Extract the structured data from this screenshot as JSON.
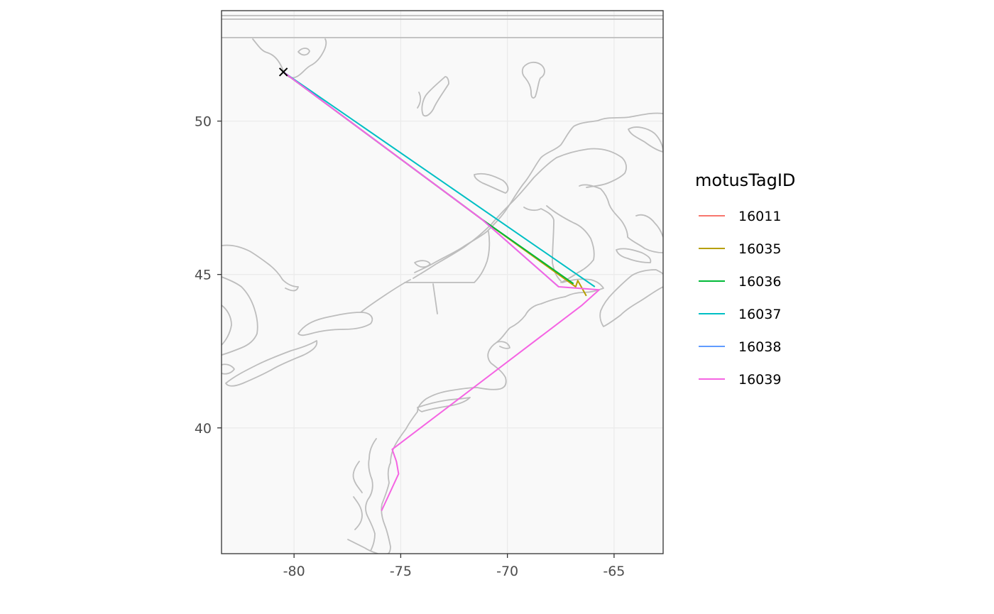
{
  "chart_data": {
    "type": "map",
    "xlim": [
      -83.4,
      -62.7
    ],
    "ylim": [
      35.9,
      53.6
    ],
    "x_ticks": [
      -80,
      -75,
      -70,
      -65
    ],
    "y_ticks": [
      40,
      45,
      50
    ],
    "x_tick_labels": [
      "-80",
      "-75",
      "-70",
      "-65"
    ],
    "y_tick_labels": [
      "40",
      "45",
      "50"
    ],
    "legend": {
      "title": "motusTagID",
      "placement": "right",
      "entries": [
        {
          "name": "16011",
          "color": "#f8766d"
        },
        {
          "name": "16035",
          "color": "#b79f00"
        },
        {
          "name": "16036",
          "color": "#00ba38"
        },
        {
          "name": "16037",
          "color": "#00bfc4"
        },
        {
          "name": "16038",
          "color": "#619cff"
        },
        {
          "name": "16039",
          "color": "#f564e3"
        }
      ]
    },
    "start_marker": {
      "lon": -80.5,
      "lat": 51.6,
      "symbol": "x"
    },
    "series": [
      {
        "name": "16011",
        "color": "#f8766d",
        "points": [
          [
            -80.5,
            51.6
          ],
          [
            -71.2,
            46.8
          ],
          [
            -66.8,
            44.6
          ]
        ]
      },
      {
        "name": "16035",
        "color": "#b79f00",
        "points": [
          [
            -80.5,
            51.6
          ],
          [
            -71.2,
            46.8
          ],
          [
            -66.8,
            44.6
          ],
          [
            -66.7,
            44.8
          ],
          [
            -66.3,
            44.3
          ]
        ]
      },
      {
        "name": "16036",
        "color": "#00ba38",
        "points": [
          [
            -80.5,
            51.6
          ],
          [
            -71.2,
            46.8
          ],
          [
            -66.9,
            44.7
          ]
        ]
      },
      {
        "name": "16037",
        "color": "#00bfc4",
        "points": [
          [
            -80.5,
            51.6
          ],
          [
            -65.9,
            44.6
          ]
        ]
      },
      {
        "name": "16038",
        "color": "#619cff",
        "points": [
          [
            -80.5,
            51.6
          ],
          [
            -71.2,
            46.8
          ],
          [
            -67.6,
            44.6
          ]
        ]
      },
      {
        "name": "16039",
        "color": "#f564e3",
        "points": [
          [
            -80.5,
            51.6
          ],
          [
            -71.2,
            46.8
          ],
          [
            -67.6,
            44.6
          ],
          [
            -65.7,
            44.5
          ],
          [
            -66.5,
            44.0
          ],
          [
            -75.4,
            39.3
          ],
          [
            -75.2,
            38.9
          ],
          [
            -75.1,
            38.5
          ],
          [
            -75.9,
            37.3
          ]
        ]
      }
    ]
  }
}
